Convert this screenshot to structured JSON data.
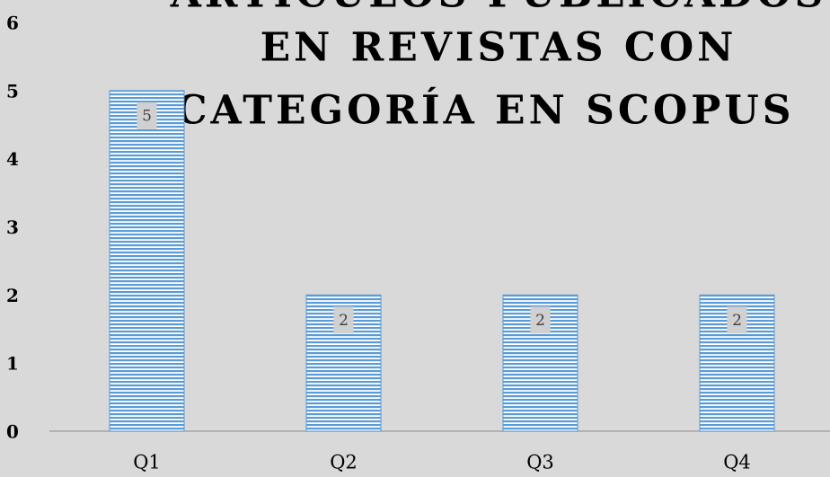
{
  "chart_data": {
    "type": "bar",
    "title": [
      "ARTÍCULOS PUBLICADOS",
      "EN REVISTAS CON",
      "CATEGORÍA EN SCOPUS"
    ],
    "categories": [
      "Q1",
      "Q2",
      "Q3",
      "Q4"
    ],
    "values": [
      5,
      2,
      2,
      2
    ],
    "color": "#5b9bd5",
    "ylim": [
      0,
      6
    ],
    "yticks": [
      0,
      1,
      2,
      3,
      4,
      5,
      6
    ],
    "grid": false
  }
}
